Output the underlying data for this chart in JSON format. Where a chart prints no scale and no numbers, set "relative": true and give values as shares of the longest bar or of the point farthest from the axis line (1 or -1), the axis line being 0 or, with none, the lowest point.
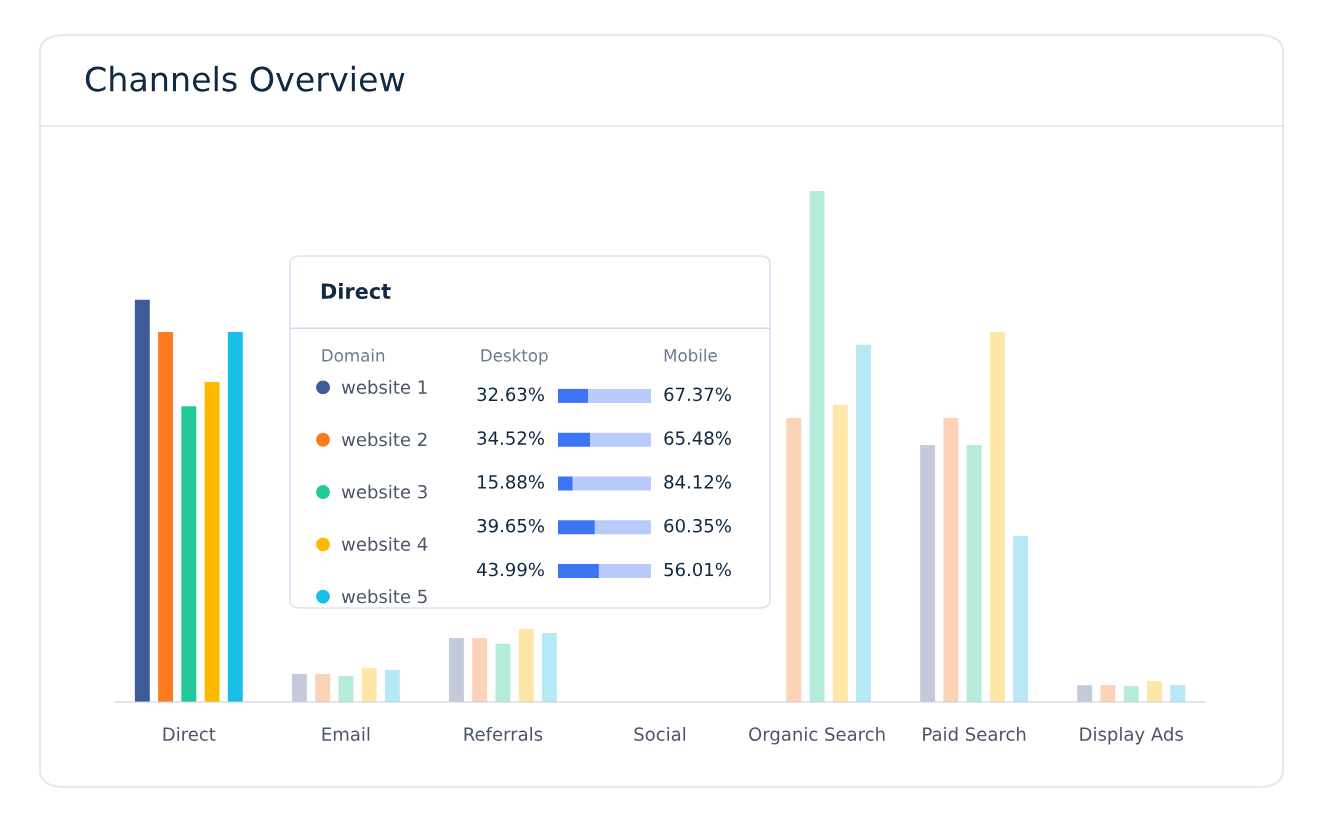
{
  "chart_data": [
    {
      "type": "bar",
      "title": "Channels Overview",
      "relative": true,
      "legend": "center",
      "annotations": [
        "Direct"
      ],
      "categories": [
        "Direct",
        "Email",
        "Referrals",
        "Social",
        "Organic Search",
        "Paid Search",
        "Display Ads"
      ],
      "series": [
        {
          "name": "website 1",
          "color": "#3f5a99",
          "colors": [
            "#3f5a99",
            "#c5cadb",
            "#c5cadb",
            "#c5cadb",
            "#c5cadb",
            "#c5cadb",
            "#c5cadb"
          ],
          "values": [
            0.787,
            0.055,
            0.125,
            null,
            null,
            0.503,
            0.033
          ]
        },
        {
          "name": "website 2",
          "color": "#fb7b1e",
          "colors": [
            "#fb7b1e",
            "#fdd3b8",
            "#fdd3b8",
            "#fdd3b8",
            "#fdd3b8",
            "#fdd3b8",
            "#fdd3b8"
          ],
          "values": [
            0.724,
            0.055,
            0.125,
            null,
            0.556,
            0.556,
            0.033
          ]
        },
        {
          "name": "website 3",
          "color": "#20c997",
          "colors": [
            "#20c997",
            "#b5ebda",
            "#b5ebda",
            "#b5ebda",
            "#b5ebda",
            "#b5ebda",
            "#b5ebda"
          ],
          "values": [
            0.579,
            0.051,
            0.114,
            null,
            1.0,
            0.503,
            0.031
          ]
        },
        {
          "name": "website 4",
          "color": "#fdb900",
          "colors": [
            "#fdb900",
            "#fee6a8",
            "#fee6a8",
            "#fee6a8",
            "#fee6a8",
            "#fee6a8",
            "#fee6a8"
          ],
          "values": [
            0.626,
            0.067,
            0.143,
            null,
            0.581,
            0.724,
            0.041
          ]
        },
        {
          "name": "website 5",
          "color": "#18bfe6",
          "colors": [
            "#18bfe6",
            "#b6e8f5",
            "#b6e8f5",
            "#b6e8f5",
            "#b6e8f5",
            "#b6e8f5",
            "#b6e8f5"
          ],
          "values": [
            0.724,
            0.063,
            0.135,
            null,
            0.699,
            0.325,
            0.033
          ]
        }
      ]
    },
    {
      "type": "bar",
      "ylabel": "Domain",
      "orientation": "horizontal",
      "stacked": true,
      "tick_labels": false,
      "legend": false,
      "categories": [
        null,
        null,
        null,
        null,
        null
      ],
      "series": [
        {
          "name": "Desktop",
          "color": "#3d73f5",
          "values": [
            32.63,
            34.52,
            15.88,
            39.65,
            43.99
          ],
          "value_labels": [
            "32.63%",
            "34.52%",
            "15.88%",
            "39.65%",
            "43.99%"
          ]
        },
        {
          "name": "Mobile",
          "color": "#b9cbfb",
          "values": [
            67.37,
            65.48,
            84.12,
            60.35,
            56.01
          ],
          "value_labels": [
            "67.37%",
            "65.48%",
            "84.12%",
            "60.35%",
            "56.01%"
          ]
        }
      ]
    }
  ]
}
